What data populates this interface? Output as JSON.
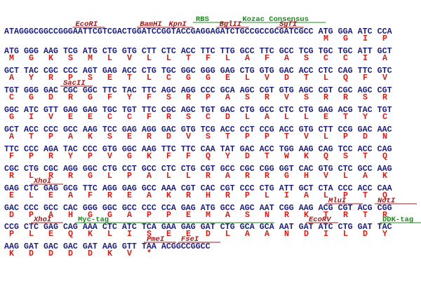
{
  "rows": [
    {
      "dna": "ATAGGGCGGCCGGGAATTCGTCGACTGGATCCGGTACCGAGGAGATCTGCCGCCGCGATCGCC ATG GGA ATC CCA",
      "aa": [
        "M",
        "G",
        "I",
        "P"
      ],
      "features": [
        {
          "label": "EcoRI",
          "color": "#a01818"
        },
        {
          "label": "BamHI",
          "color": "#a01818"
        },
        {
          "label": "KpnI",
          "color": "#a01818"
        },
        {
          "label": "RBS",
          "color": "#1e8a1e"
        },
        {
          "label": "BglII",
          "color": "#a01818"
        },
        {
          "label": "Kozac Consensus",
          "color": "#1e8a1e"
        },
        {
          "label": "SgfI",
          "color": "#a01818"
        }
      ]
    },
    {
      "dna": "ATG GGG AAG TCG ATG CTG GTG CTT CTC ACC TTC TTG GCC TTC GCC TCG TGC TGC ATT GCT",
      "aa": [
        "M",
        "G",
        "K",
        "S",
        "M",
        "L",
        "V",
        "L",
        "L",
        "T",
        "F",
        "L",
        "A",
        "F",
        "A",
        "S",
        "C",
        "C",
        "I",
        "A"
      ],
      "features": []
    },
    {
      "dna": "GCT TAC CGC CCC AGT GAG ACC CTG TGC GGC GGG GAG CTG GTG GAC ACC CTC CAG TTC GTC",
      "aa": [
        "A",
        "Y",
        "R",
        "P",
        "S",
        "E",
        "T",
        "L",
        "C",
        "G",
        "G",
        "E",
        "L",
        "V",
        "D",
        "T",
        "L",
        "Q",
        "F",
        "V"
      ],
      "features": []
    },
    {
      "dna": "TGT GGG GAC CGC GGC TTC TAC TTC AGC AGG CCC GCA AGC CGT GTG AGC CGT CGC AGC CGT",
      "aa": [
        "C",
        "G",
        "D",
        "R",
        "G",
        "F",
        "Y",
        "F",
        "S",
        "R",
        "P",
        "A",
        "S",
        "R",
        "V",
        "S",
        "R",
        "R",
        "S",
        "R"
      ],
      "features": [
        {
          "label": "SacII",
          "color": "#a01818"
        }
      ]
    },
    {
      "dna": "GGC ATC GTT GAG GAG TGC TGT TTC CGC AGC TGT GAC CTG GCC CTC CTG GAG ACG TAC TGT",
      "aa": [
        "G",
        "I",
        "V",
        "E",
        "E",
        "C",
        "C",
        "F",
        "R",
        "S",
        "C",
        "D",
        "L",
        "A",
        "L",
        "L",
        "E",
        "T",
        "Y",
        "C"
      ],
      "features": []
    },
    {
      "dna": "GCT ACC CCC GCC AAG TCC GAG AGG GAC GTG TCG ACC CCT CCG ACC GTG CTT CCG GAC AAC",
      "aa": [
        "A",
        "T",
        "P",
        "A",
        "K",
        "S",
        "E",
        "R",
        "D",
        "V",
        "S",
        "T",
        "P",
        "P",
        "T",
        "V",
        "L",
        "P",
        "D",
        "N"
      ],
      "features": []
    },
    {
      "dna": "TTC CCC AGA TAC CCC GTG GGC AAG TTC TTC CAA TAT GAC ACC TGG AAG CAG TCC ACC CAG",
      "aa": [
        "F",
        "P",
        "R",
        "Y",
        "P",
        "V",
        "G",
        "K",
        "F",
        "F",
        "Q",
        "Y",
        "D",
        "T",
        "W",
        "K",
        "Q",
        "S",
        "T",
        "Q"
      ],
      "features": []
    },
    {
      "dna": "CGC CTG CGC AGG GGC CTG CCT GCC CTC CTG CGT GCC CGC CGG GGT CAC GTG CTC GCC AAG",
      "aa": [
        "R",
        "L",
        "R",
        "R",
        "G",
        "L",
        "P",
        "A",
        "L",
        "L",
        "R",
        "A",
        "R",
        "R",
        "G",
        "H",
        "V",
        "L",
        "A",
        "K"
      ],
      "features": []
    },
    {
      "dna": "GAG CTC GAG GCG TTC AGG GAG GCC AAA CGT CAC CGT CCC CTG ATT GCT CTA CCC ACC CAA",
      "aa": [
        "E",
        "L",
        "E",
        "A",
        "F",
        "R",
        "E",
        "A",
        "K",
        "R",
        "H",
        "R",
        "P",
        "L",
        "I",
        "A",
        "L",
        "P",
        "T",
        "Q"
      ],
      "features": [
        {
          "label": "XhoI",
          "color": "#a01818"
        }
      ]
    },
    {
      "dna": "GAC CCC GCC CAC GGG GGC GCC CCC CCA GAG ATG GCC AGC AAT CGG AAG ACG CGT ACG CGG",
      "aa": [
        "D",
        "P",
        "A",
        "H",
        "G",
        "G",
        "A",
        "P",
        "P",
        "E",
        "M",
        "A",
        "S",
        "N",
        "R",
        "K",
        "T",
        "R",
        "T",
        "R"
      ],
      "features": [
        {
          "label": "MluI",
          "color": "#a01818"
        },
        {
          "label": "NotI",
          "color": "#a01818"
        }
      ]
    },
    {
      "dna": "CCG CTC GAG CAG AAA CTC ATC TCA GAA GAG GAT CTG GCA GCA AAT GAT ATC CTG GAT TAC",
      "aa": [
        "P",
        "L",
        "E",
        "Q",
        "K",
        "L",
        "I",
        "S",
        "E",
        "E",
        "D",
        "L",
        "A",
        "A",
        "N",
        "D",
        "I",
        "L",
        "D",
        "Y"
      ],
      "features": [
        {
          "label": "XhoI",
          "color": "#a01818"
        },
        {
          "label": "Myc-tag",
          "color": "#1e8a1e"
        },
        {
          "label": "EcoRV",
          "color": "#a01818"
        },
        {
          "label": "DDK-tag",
          "color": "#1e8a1e"
        }
      ]
    },
    {
      "dna": "AAG GAT GAC GAC GAT AAG GTT TAA ACGGCCGGCC",
      "aa": [
        "K",
        "D",
        "D",
        "D",
        "D",
        "K",
        "V",
        "*"
      ],
      "features": [
        {
          "label": "PmeI",
          "color": "#a01818"
        },
        {
          "label": "FseI",
          "color": "#a01818"
        }
      ]
    }
  ]
}
